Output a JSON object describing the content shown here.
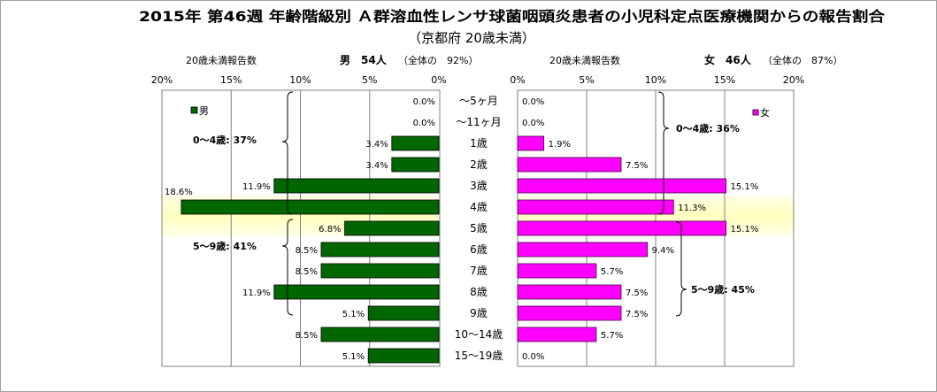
{
  "title": "2015年 第46週 年齢階級別 Ａ群溶血性レンサ球菌咽頭炎患者の小児科定点医療機関からの報告割合",
  "subtitle": "（京都府 20歳未満）",
  "left_header": {
    "label": "20歳未満報告数",
    "count": "男　54人",
    "share": "（全体の　92%）"
  },
  "right_header": {
    "label": "20歳未満報告数",
    "count": "女　46人",
    "share": "（全体の　87%）"
  },
  "colors": {
    "male": "#006600",
    "female": "#ff00ff",
    "highlight_band": "#ffffc8",
    "grid": "#808080"
  },
  "chart_data": {
    "type": "bar",
    "orientation": "horizontal-butterfly",
    "categories": [
      "～5ヶ月",
      "～11ヶ月",
      "1歳",
      "2歳",
      "3歳",
      "4歳",
      "5歳",
      "6歳",
      "7歳",
      "8歳",
      "9歳",
      "10～14歳",
      "15～19歳"
    ],
    "series": [
      {
        "name": "男",
        "side": "left",
        "values": [
          0.0,
          0.0,
          3.4,
          3.4,
          11.9,
          18.6,
          6.8,
          8.5,
          8.5,
          11.9,
          5.1,
          8.5,
          5.1
        ]
      },
      {
        "name": "女",
        "side": "right",
        "values": [
          0.0,
          0.0,
          1.9,
          7.5,
          15.1,
          11.3,
          15.1,
          9.4,
          5.7,
          7.5,
          7.5,
          5.7,
          0.0
        ]
      }
    ],
    "unit": "%",
    "xlim": [
      0,
      20
    ],
    "left_ticks": [
      "20%",
      "15%",
      "10%",
      "5%",
      "0%"
    ],
    "right_ticks": [
      "0%",
      "5%",
      "10%",
      "15%",
      "20%"
    ],
    "grid": true,
    "legend": {
      "male": "top-left",
      "female": "top-right"
    },
    "annotations": {
      "male_0_4": "0～4歳: 37%",
      "male_5_9": "5～9歳: 41%",
      "female_0_4": "0～4歳: 36%",
      "female_5_9": "5～9歳: 45%"
    }
  }
}
